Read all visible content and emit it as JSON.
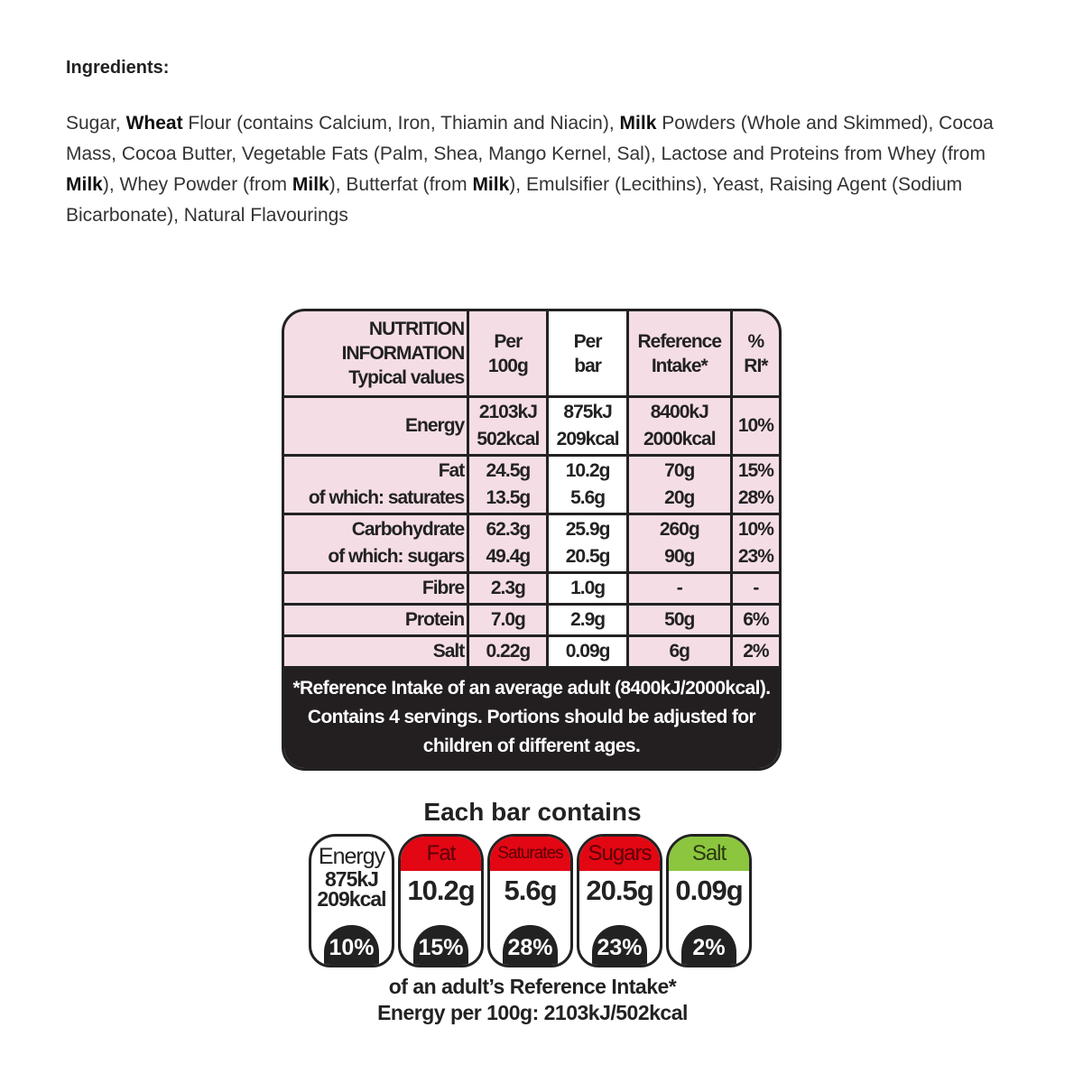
{
  "ingredients": {
    "title": "Ingredients:",
    "parts": [
      {
        "t": "Sugar, ",
        "b": false
      },
      {
        "t": "Wheat",
        "b": true
      },
      {
        "t": " Flour (contains Calcium, Iron, Thiamin and Niacin), ",
        "b": false
      },
      {
        "t": "Milk",
        "b": true
      },
      {
        "t": " Powders (Whole and Skimmed), Cocoa Mass, Cocoa Butter, Vegetable Fats (Palm, Shea, Mango Kernel, Sal), Lactose and Proteins from Whey (from ",
        "b": false
      },
      {
        "t": "Milk",
        "b": true
      },
      {
        "t": "), Whey Powder (from ",
        "b": false
      },
      {
        "t": "Milk",
        "b": true
      },
      {
        "t": "), Butterfat (from ",
        "b": false
      },
      {
        "t": "Milk",
        "b": true
      },
      {
        "t": "), Emulsifier (Lecithins), Yeast, Raising Agent (Sodium Bicarbonate), Natural Flavourings",
        "b": false
      }
    ]
  },
  "nutrition": {
    "headers": [
      "NUTRITION\nINFORMATION\nTypical values",
      "Per\n100g",
      "Per\nbar",
      "Reference\nIntake*",
      "%\nRI*"
    ],
    "rows": [
      [
        "Energy",
        "2103kJ\n502kcal",
        "875kJ\n209kcal",
        "8400kJ\n2000kcal",
        "10%"
      ],
      [
        "Fat\nof which: saturates",
        "24.5g\n13.5g",
        "10.2g\n5.6g",
        "70g\n20g",
        "15%\n28%"
      ],
      [
        "Carbohydrate\nof which: sugars",
        "62.3g\n49.4g",
        "25.9g\n20.5g",
        "260g\n90g",
        "10%\n23%"
      ],
      [
        "Fibre",
        "2.3g",
        "1.0g",
        "-",
        "-"
      ],
      [
        "Protein",
        "7.0g",
        "2.9g",
        "50g",
        "6%"
      ],
      [
        "Salt",
        "0.22g",
        "0.09g",
        "6g",
        "2%"
      ]
    ],
    "footnote": "*Reference Intake of an average adult (8400kJ/2000kcal).\nContains 4 servings. Portions should be adjusted for\nchildren of different ages."
  },
  "label": {
    "title": "Each bar contains",
    "items": [
      {
        "name": "Energy",
        "value": "875kJ\n209kcal",
        "pct": "10%",
        "color": "#ffffff"
      },
      {
        "name": "Fat",
        "value": "10.2g",
        "pct": "15%",
        "color": "#e30613"
      },
      {
        "name": "Saturates",
        "value": "5.6g",
        "pct": "28%",
        "color": "#e30613"
      },
      {
        "name": "Sugars",
        "value": "20.5g",
        "pct": "23%",
        "color": "#e30613"
      },
      {
        "name": "Salt",
        "value": "0.09g",
        "pct": "2%",
        "color": "#8cc63f"
      }
    ],
    "ri_note": "of an adult’s Reference Intake*",
    "energy_100g": "Energy per 100g: 2103kJ/502kcal"
  }
}
